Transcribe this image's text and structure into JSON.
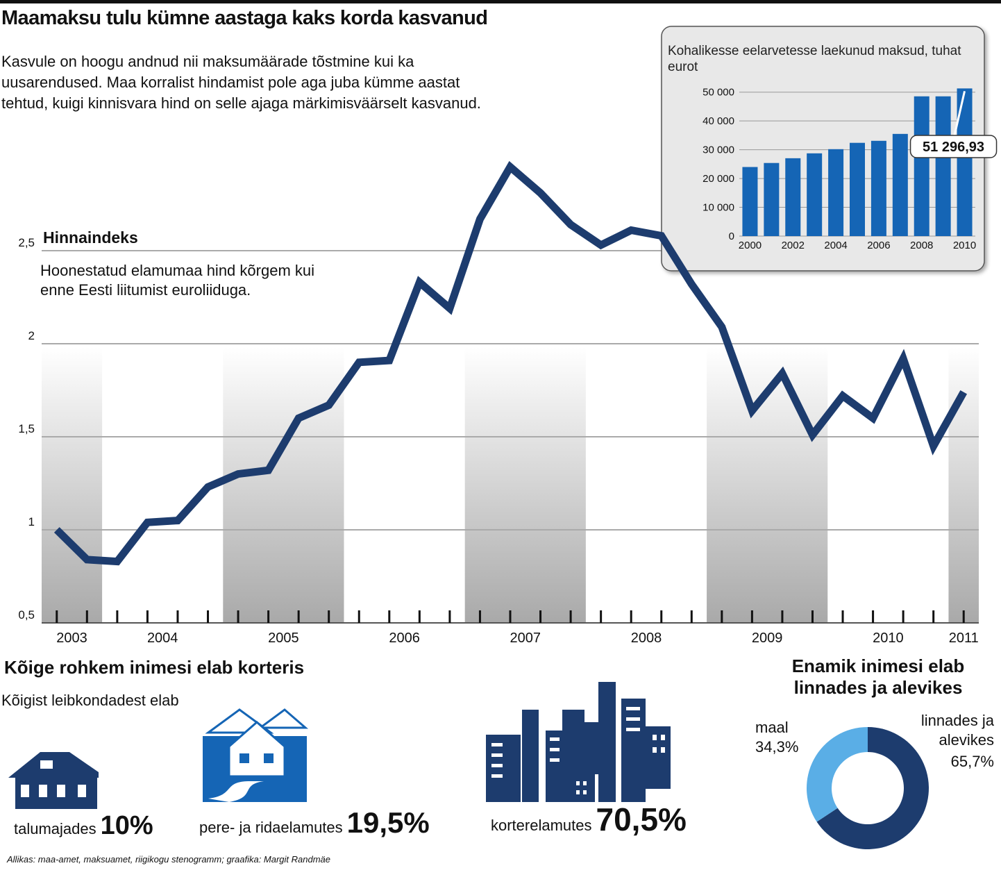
{
  "header": {
    "title": "Maamaksu tulu kümne aastaga kaks korda kasvanud",
    "intro": "Kasvule on hoogu andnud nii maksumäärade tõstmine kui ka uusarendused. Maa korralist hindamist pole aga juba kümme aastat tehtud, kuigi kinnisvara hind on selle ajaga märkimisväärselt kasvanud."
  },
  "chart_data": [
    {
      "type": "line",
      "title": "Hinnaindeks",
      "annotation": "Hoonestatud elamumaa hind kõrgem kui enne Eesti liitumist euroliiduga.",
      "x": [
        2003.625,
        2003.875,
        2004.125,
        2004.375,
        2004.625,
        2004.875,
        2005.125,
        2005.375,
        2005.625,
        2005.875,
        2006.125,
        2006.375,
        2006.625,
        2006.875,
        2007.125,
        2007.375,
        2007.625,
        2007.875,
        2008.125,
        2008.375,
        2008.625,
        2008.875,
        2009.125,
        2009.375,
        2009.625,
        2009.875,
        2010.125,
        2010.375,
        2010.625,
        2010.875,
        2011.125
      ],
      "series": [
        {
          "color": "#1d3c6e",
          "values": [
            1.0,
            0.84,
            0.83,
            1.04,
            1.05,
            1.23,
            1.3,
            1.32,
            1.6,
            1.67,
            1.9,
            1.91,
            2.33,
            2.19,
            2.67,
            2.95,
            2.81,
            2.64,
            2.53,
            2.61,
            2.58,
            2.32,
            2.09,
            1.64,
            1.84,
            1.51,
            1.72,
            1.6,
            1.92,
            1.45,
            1.74
          ]
        }
      ],
      "xlim": [
        2003.5,
        2011.25
      ],
      "xticks": [
        2003,
        2004,
        2005,
        2006,
        2007,
        2008,
        2009,
        2010,
        2011
      ],
      "ylim": [
        0.5,
        3.0
      ],
      "yticks": [
        {
          "value": 0.5,
          "label": "0,5"
        },
        1,
        {
          "value": 1.5,
          "label": "1,5"
        },
        2,
        {
          "value": 2.5,
          "label": "2,5"
        }
      ],
      "grid": true
    },
    {
      "type": "bar",
      "title": "Kohalikesse eelarvetesse laekunud maksud, tuhat eurot",
      "categories": [
        "2000",
        null,
        "2002",
        null,
        "2004",
        null,
        "2006",
        null,
        "2008",
        null,
        "2010"
      ],
      "values": [
        24000,
        25400,
        27050,
        28750,
        30200,
        32400,
        33100,
        35500,
        48550,
        48550,
        51296.93
      ],
      "value_labels": [
        null,
        null,
        null,
        null,
        null,
        null,
        null,
        null,
        null,
        null,
        "51 296,93"
      ],
      "color": "#1565b5",
      "ylim": [
        0,
        55000
      ],
      "yticks": [
        0,
        {
          "value": 10000,
          "label": "10 000"
        },
        {
          "value": 20000,
          "label": "20 000"
        },
        {
          "value": 30000,
          "label": "30 000"
        },
        {
          "value": 40000,
          "label": "40 000"
        },
        {
          "value": 50000,
          "label": "50 000"
        }
      ],
      "grid": true
    },
    {
      "type": "pictogram",
      "title": "Kõige rohkem inimesi elab korteris",
      "subtitle": "Kõigist leibkondadest elab",
      "categories": [
        "talumajades",
        "pere- ja ridaelamutes",
        "korterelamutes"
      ],
      "values": [
        10,
        19.5,
        70.5
      ],
      "value_labels": [
        "10%",
        "19,5%",
        "70,5%"
      ]
    },
    {
      "type": "pie",
      "title": "Enamik inimesi elab linnades ja alevikes",
      "categories": [
        "linnades ja alevikes",
        "maal"
      ],
      "values": [
        65.7,
        34.3
      ],
      "value_labels": [
        "65,7%",
        "34,3%"
      ],
      "colors": [
        "#1d3c6e",
        "#5aaee6"
      ],
      "donut": true
    }
  ],
  "source": "Allikas: maa-amet, maksuamet, riigikogu stenogramm; graafika: Margit Randmäe"
}
